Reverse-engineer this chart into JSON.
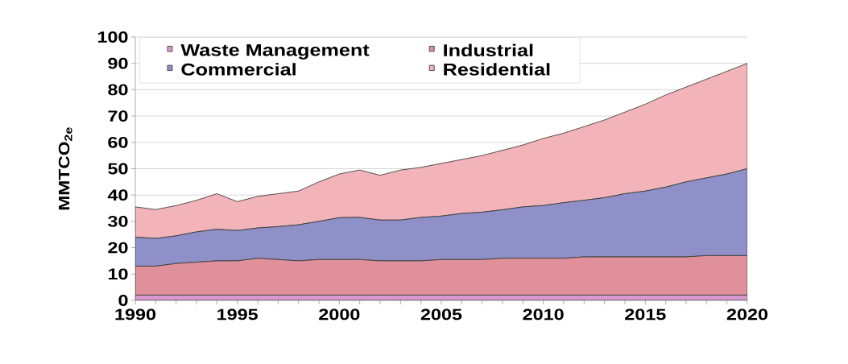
{
  "chart_data": {
    "type": "area",
    "stacked": true,
    "ylabel": "MMTCO$_{2e}$",
    "x": [
      1990,
      1991,
      1992,
      1993,
      1994,
      1995,
      1996,
      1997,
      1998,
      1999,
      2000,
      2001,
      2002,
      2003,
      2004,
      2005,
      2006,
      2007,
      2008,
      2009,
      2010,
      2011,
      2012,
      2013,
      2014,
      2015,
      2016,
      2017,
      2018,
      2019,
      2020
    ],
    "series": [
      {
        "name": "Waste Management",
        "color": "#d898d0",
        "values": [
          2,
          2,
          2,
          2,
          2,
          2,
          2,
          2,
          2,
          2,
          2,
          2,
          2,
          2,
          2,
          2,
          2,
          2,
          2,
          2,
          2,
          2,
          2,
          2,
          2,
          2,
          2,
          2,
          2,
          2,
          2
        ]
      },
      {
        "name": "Industrial",
        "color": "#e0909a",
        "values": [
          11,
          11,
          12,
          12.5,
          13,
          13,
          14,
          13.5,
          13,
          13.5,
          13.5,
          13.5,
          13,
          13,
          13,
          13.5,
          13.5,
          13.5,
          14,
          14,
          14,
          14,
          14.5,
          14.5,
          14.5,
          14.5,
          14.5,
          14.5,
          15,
          15,
          15
        ]
      },
      {
        "name": "Commercial",
        "color": "#9090c8",
        "values": [
          11,
          10.5,
          10.5,
          11.5,
          12,
          11.5,
          11.5,
          12.5,
          13.7,
          14.5,
          15.9,
          16,
          15.5,
          15.5,
          16.5,
          16.5,
          17.5,
          18,
          18.4,
          19.5,
          20,
          21.1,
          21.5,
          22.5,
          24,
          25,
          26.5,
          28.5,
          29.5,
          31,
          33
        ]
      },
      {
        "name": "Residential",
        "color": "#f2b4b8",
        "values": [
          11.5,
          11,
          11.5,
          12,
          13.5,
          11,
          12,
          12.5,
          12.8,
          15,
          16.6,
          18,
          17,
          19,
          19,
          20,
          20.5,
          21.5,
          22.6,
          23.5,
          25.5,
          26.4,
          28,
          29.5,
          31,
          33,
          35,
          36,
          37.5,
          39,
          40
        ]
      }
    ],
    "xlim": [
      1990,
      2020
    ],
    "ylim": [
      0,
      100
    ],
    "xticks": [
      1990,
      {
        "value": 1991,
        "label": null
      },
      {
        "value": 1992,
        "label": null
      },
      {
        "value": 1993,
        "label": null
      },
      {
        "value": 1994,
        "label": null
      },
      1995,
      {
        "value": 1996,
        "label": null
      },
      {
        "value": 1997,
        "label": null
      },
      {
        "value": 1998,
        "label": null
      },
      {
        "value": 1999,
        "label": null
      },
      2000,
      {
        "value": 2001,
        "label": null
      },
      {
        "value": 2002,
        "label": null
      },
      {
        "value": 2003,
        "label": null
      },
      {
        "value": 2004,
        "label": null
      },
      2005,
      {
        "value": 2006,
        "label": null
      },
      {
        "value": 2007,
        "label": null
      },
      {
        "value": 2008,
        "label": null
      },
      {
        "value": 2009,
        "label": null
      },
      2010,
      {
        "value": 2011,
        "label": null
      },
      {
        "value": 2012,
        "label": null
      },
      {
        "value": 2013,
        "label": null
      },
      {
        "value": 2014,
        "label": null
      },
      2015,
      {
        "value": 2016,
        "label": null
      },
      {
        "value": 2017,
        "label": null
      },
      {
        "value": 2018,
        "label": null
      },
      {
        "value": 2019,
        "label": null
      },
      2020
    ],
    "yticks": [
      0,
      10,
      20,
      30,
      40,
      50,
      60,
      70,
      80,
      90,
      100
    ],
    "grid": "y",
    "legend": "top left"
  }
}
